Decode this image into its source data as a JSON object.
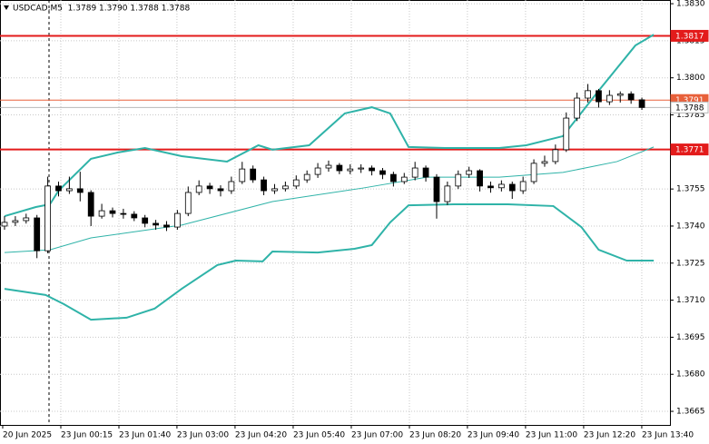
{
  "chart_data": {
    "type": "candlestick",
    "title": "USDCAD,M5  1.3789 1.3790 1.3788 1.3788",
    "xlim": [
      -0.42,
      61.6
    ],
    "ylim": [
      1.36595,
      1.38315
    ],
    "grid": true,
    "bull_color": "#ffffff",
    "bear_color": "#000000",
    "xticks": [
      {
        "value": -0.17,
        "label": "20 Jun 2025"
      },
      {
        "value": 5.21,
        "label": "23 Jun 00:15"
      },
      {
        "value": 10.59,
        "label": "23 Jun 01:40"
      },
      {
        "value": 15.96,
        "label": "23 Jun 03:00"
      },
      {
        "value": 21.34,
        "label": "23 Jun 04:20"
      },
      {
        "value": 26.72,
        "label": "23 Jun 05:40"
      },
      {
        "value": 32.1,
        "label": "23 Jun 07:00"
      },
      {
        "value": 37.48,
        "label": "23 Jun 08:20"
      },
      {
        "value": 42.85,
        "label": "23 Jun 09:40"
      },
      {
        "value": 48.23,
        "label": "23 Jun 11:00"
      },
      {
        "value": 53.61,
        "label": "23 Jun 12:20"
      },
      {
        "value": 58.99,
        "label": "23 Jun 13:40"
      }
    ],
    "yticks": [
      1.3665,
      {
        "value": 1.368,
        "label": "1.3680"
      },
      1.3695,
      {
        "value": 1.371,
        "label": "1.3710"
      },
      1.3725,
      {
        "value": 1.374,
        "label": "1.3740"
      },
      1.3755,
      1.3785,
      {
        "value": 1.38,
        "label": "1.3800"
      },
      1.3815,
      {
        "value": 1.383,
        "label": "1.3830"
      }
    ],
    "open": [
      1.374,
      1.37415,
      1.37422,
      1.37433,
      1.373,
      1.37562,
      1.37543,
      1.37551,
      1.37536,
      1.3744,
      1.37462,
      1.37451,
      1.37448,
      1.37433,
      1.37411,
      1.37404,
      1.37396,
      1.37451,
      1.37536,
      1.37562,
      1.37551,
      1.37543,
      1.3758,
      1.37631,
      1.37587,
      1.37543,
      1.37551,
      1.37562,
      1.37587,
      1.37609,
      1.37635,
      1.37646,
      1.37624,
      1.37631,
      1.37635,
      1.37624,
      1.37609,
      1.3758,
      1.37598,
      1.37635,
      1.37598,
      1.37499,
      1.37562,
      1.37609,
      1.37624,
      1.37562,
      1.37555,
      1.37569,
      1.37543,
      1.3758,
      1.37654,
      1.37661,
      1.37709,
      1.37837,
      1.37918,
      1.37948,
      1.37903,
      1.37929,
      1.37935,
      1.37911
    ],
    "high": [
      1.3744,
      1.3744,
      1.3745,
      1.37445,
      1.376,
      1.3758,
      1.376,
      1.3762,
      1.37545,
      1.3749,
      1.37475,
      1.3747,
      1.3746,
      1.37445,
      1.37425,
      1.3742,
      1.37465,
      1.3756,
      1.37585,
      1.37575,
      1.37565,
      1.376,
      1.3766,
      1.37645,
      1.376,
      1.3757,
      1.3758,
      1.37605,
      1.37625,
      1.37655,
      1.37665,
      1.37655,
      1.3765,
      1.3765,
      1.37645,
      1.37635,
      1.3762,
      1.37615,
      1.3766,
      1.37645,
      1.3761,
      1.3758,
      1.37625,
      1.3764,
      1.3763,
      1.3758,
      1.37585,
      1.3758,
      1.376,
      1.3767,
      1.37685,
      1.3773,
      1.3786,
      1.3794,
      1.37975,
      1.37955,
      1.3795,
      1.37945,
      1.37945,
      1.3792
    ],
    "low": [
      1.37385,
      1.374,
      1.3741,
      1.3727,
      1.3729,
      1.3752,
      1.3753,
      1.375,
      1.374,
      1.3743,
      1.37435,
      1.3743,
      1.3742,
      1.37395,
      1.37385,
      1.3738,
      1.37385,
      1.3744,
      1.37525,
      1.3753,
      1.3752,
      1.3753,
      1.3757,
      1.37575,
      1.37525,
      1.3753,
      1.3754,
      1.3755,
      1.37575,
      1.37595,
      1.3762,
      1.3761,
      1.3761,
      1.37615,
      1.37605,
      1.3759,
      1.3756,
      1.3757,
      1.37585,
      1.3758,
      1.3743,
      1.37485,
      1.3755,
      1.37595,
      1.3754,
      1.37535,
      1.3754,
      1.3751,
      1.3753,
      1.3757,
      1.3764,
      1.3765,
      1.377,
      1.37825,
      1.379,
      1.3788,
      1.3789,
      1.379,
      1.37895,
      1.3787
    ],
    "close": [
      1.37415,
      1.37422,
      1.37433,
      1.373,
      1.37562,
      1.37543,
      1.37551,
      1.37536,
      1.3744,
      1.37462,
      1.37451,
      1.37448,
      1.37433,
      1.37411,
      1.37404,
      1.37396,
      1.37451,
      1.37536,
      1.37562,
      1.37551,
      1.37543,
      1.3758,
      1.37631,
      1.37587,
      1.37543,
      1.37551,
      1.37562,
      1.37587,
      1.37609,
      1.37635,
      1.37646,
      1.37624,
      1.37631,
      1.37635,
      1.37624,
      1.37609,
      1.3758,
      1.37598,
      1.37635,
      1.37598,
      1.37499,
      1.37562,
      1.37609,
      1.37624,
      1.37562,
      1.37555,
      1.37569,
      1.37543,
      1.3758,
      1.37654,
      1.37661,
      1.37709,
      1.37837,
      1.37918,
      1.37948,
      1.37903,
      1.37929,
      1.37935,
      1.37911,
      1.3788
    ],
    "series": [
      {
        "color": "#2fb3a8",
        "width": 2,
        "x": [
          0,
          2.9,
          4.2,
          5.0,
          8.0,
          10.5,
          13.0,
          16.4,
          20.6,
          23.5,
          24.8,
          28.2,
          31.5,
          34.0,
          35.7,
          37.4,
          40.8,
          45.8,
          48.3,
          51.7,
          55.0,
          58.4,
          60.1
        ],
        "values": [
          1.3744,
          1.37477,
          1.37488,
          1.37543,
          1.37672,
          1.37698,
          1.37716,
          1.37683,
          1.37661,
          1.37727,
          1.37709,
          1.37727,
          1.37856,
          1.37881,
          1.37856,
          1.3772,
          1.37716,
          1.37716,
          1.37727,
          1.37764,
          1.37948,
          1.38131,
          1.38175
        ]
      },
      {
        "color": "#2fb3a8",
        "width": 1,
        "x": [
          0,
          4.2,
          8.0,
          16.4,
          24.8,
          33.2,
          39.1,
          45.8,
          51.7,
          56.7,
          60.1
        ],
        "values": [
          1.37293,
          1.37304,
          1.37352,
          1.37404,
          1.37499,
          1.37554,
          1.37598,
          1.37598,
          1.37617,
          1.37661,
          1.3772
        ]
      },
      {
        "color": "#2fb3a8",
        "width": 2,
        "x": [
          0,
          3.8,
          5.5,
          8.0,
          11.3,
          13.9,
          16.4,
          19.7,
          21.4,
          23.9,
          24.8,
          29.0,
          32.4,
          34.0,
          35.7,
          37.4,
          41.6,
          46.6,
          50.8,
          53.4,
          55.0,
          57.6,
          60.1
        ],
        "values": [
          1.37146,
          1.37121,
          1.37084,
          1.37021,
          1.37029,
          1.37066,
          1.37146,
          1.37242,
          1.3726,
          1.37257,
          1.37297,
          1.37293,
          1.37308,
          1.37323,
          1.37415,
          1.37484,
          1.37488,
          1.37488,
          1.37481,
          1.37396,
          1.37304,
          1.3726,
          1.3726
        ]
      }
    ],
    "levels": [
      {
        "value": 1.3817,
        "color": "#e31b1b",
        "width": 2,
        "text_color": "#ffffff"
      },
      {
        "value": 1.3791,
        "color": "#e8603a",
        "width": 1,
        "text_color": "#ffffff"
      },
      {
        "value": 1.3788,
        "color": "#b8b8b8",
        "width": 1,
        "text_color": "#000000"
      },
      {
        "value": 1.3771,
        "color": "#e31b1b",
        "width": 2,
        "text_color": "#ffffff"
      }
    ]
  }
}
